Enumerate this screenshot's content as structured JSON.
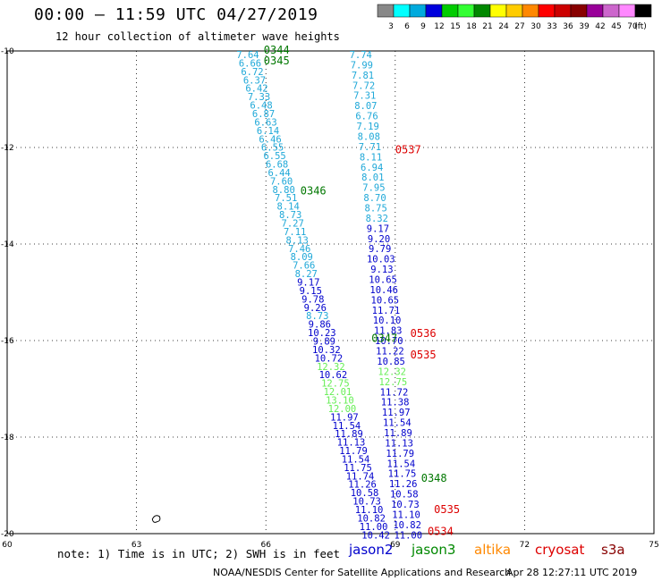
{
  "header": {
    "title": "00:00 – 11:59 UTC 04/27/2019",
    "subtitle": "12 hour collection of altimeter wave heights"
  },
  "legend": {
    "unit": "(ft)",
    "bins": [
      {
        "label": "3",
        "color": "#888888"
      },
      {
        "label": "6",
        "color": "#00ffff"
      },
      {
        "label": "9",
        "color": "#00aadd"
      },
      {
        "label": "12",
        "color": "#0000dd"
      },
      {
        "label": "15",
        "color": "#00cc00"
      },
      {
        "label": "18",
        "color": "#33ff33"
      },
      {
        "label": "21",
        "color": "#008800"
      },
      {
        "label": "24",
        "color": "#ffff00"
      },
      {
        "label": "27",
        "color": "#ffcc00"
      },
      {
        "label": "30",
        "color": "#ff8800"
      },
      {
        "label": "33",
        "color": "#ff0000"
      },
      {
        "label": "36",
        "color": "#cc0000"
      },
      {
        "label": "39",
        "color": "#880000"
      },
      {
        "label": "42",
        "color": "#990099"
      },
      {
        "label": "45",
        "color": "#cc66cc"
      },
      {
        "label": "70",
        "color": "#ff88ff"
      },
      {
        "label": "",
        "color": "#000000"
      }
    ]
  },
  "map": {
    "lon_range": [
      60,
      75
    ],
    "lat_range": [
      -20,
      -10
    ],
    "lon_ticks": [
      "60",
      "63",
      "66",
      "69",
      "72",
      "75"
    ],
    "lat_ticks": [
      {
        "lat": -10,
        "label": "-10"
      },
      {
        "lat": -12,
        "label": "-12"
      },
      {
        "lat": -14,
        "label": "-14"
      },
      {
        "lat": -16,
        "label": "-16"
      },
      {
        "lat": -18,
        "label": "-18"
      },
      {
        "lat": -20,
        "label": "-20"
      }
    ],
    "grid_lons": [
      63,
      66,
      69,
      72
    ],
    "grid_lats": [
      -12,
      -14,
      -16,
      -18
    ]
  },
  "tracks": [
    {
      "satellite": "jason3",
      "start": [
        65.58,
        -10.0
      ],
      "end": [
        68.55,
        -19.95
      ],
      "values": [
        "7.64",
        "6.66",
        "6.72",
        "6.37",
        "6.42",
        "7.33",
        "6.48",
        "6.87",
        "6.63",
        "6.14",
        "6.46",
        "6.55",
        "6.55",
        "6.68",
        "6.44",
        "7.60",
        "8.80",
        "7.51",
        "8.14",
        "8.73",
        "7.27",
        "7.11",
        "8.13",
        "7.46",
        "8.09",
        "7.66",
        "8.27",
        "9.17",
        "9.15",
        "9.78",
        "9.26",
        "8.73",
        "9.86",
        "10.23",
        "9.89",
        "10.32",
        "10.72",
        "12.32",
        "10.62",
        "12.75",
        "12.01",
        "13.10",
        "12.00",
        "11.97",
        "11.54",
        "11.89",
        "11.13",
        "11.79",
        "11.54",
        "11.75",
        "11.74",
        "11.26",
        "10.58",
        "10.73",
        "11.10",
        "10.82",
        "11.00",
        "10.42"
      ]
    },
    {
      "satellite": "jason3",
      "start": [
        68.2,
        -10.0
      ],
      "end": [
        69.3,
        -19.95
      ],
      "values": [
        "7.74",
        "7.99",
        "7.81",
        "7.72",
        "7.31",
        "8.07",
        "6.76",
        "7.19",
        "8.08",
        "7.71",
        "8.11",
        "6.94",
        "8.01",
        "7.95",
        "8.70",
        "8.75",
        "8.32",
        "9.17",
        "9.20",
        "9.79",
        "10.03",
        "9.13",
        "10.65",
        "10.46",
        "10.65",
        "11.71",
        "10.10",
        "11.83",
        "10.70",
        "11.22",
        "10.85",
        "12.32",
        "12.75",
        "11.72",
        "11.38",
        "11.97",
        "11.54",
        "11.89",
        "11.13",
        "11.79",
        "11.54",
        "11.75",
        "11.26",
        "10.58",
        "10.73",
        "11.10",
        "10.82",
        "11.00"
      ]
    }
  ],
  "pass_labels": [
    {
      "text": "0344",
      "lon": 65.95,
      "lat": -9.98,
      "color": "#007700"
    },
    {
      "text": "0345",
      "lon": 65.95,
      "lat": -10.2,
      "color": "#007700"
    },
    {
      "text": "0537",
      "lon": 69.0,
      "lat": -12.05,
      "color": "#dd0000"
    },
    {
      "text": "0346",
      "lon": 66.8,
      "lat": -12.9,
      "color": "#007700"
    },
    {
      "text": "0536",
      "lon": 69.35,
      "lat": -15.85,
      "color": "#dd0000"
    },
    {
      "text": "0347",
      "lon": 68.45,
      "lat": -15.95,
      "color": "#007700"
    },
    {
      "text": "0535",
      "lon": 69.35,
      "lat": -16.3,
      "color": "#dd0000"
    },
    {
      "text": "0348",
      "lon": 69.6,
      "lat": -18.85,
      "color": "#007700"
    },
    {
      "text": "0535",
      "lon": 69.9,
      "lat": -19.5,
      "color": "#dd0000"
    },
    {
      "text": "0534",
      "lon": 69.75,
      "lat": -19.95,
      "color": "#dd0000"
    }
  ],
  "islands": [
    {
      "name": "Rodrigues",
      "lon": 63.45,
      "lat": -19.7
    }
  ],
  "footer": {
    "note": "note: 1) Time is in UTC; 2) SWH is in feet",
    "satellites": [
      {
        "name": "jason2",
        "color": "#0000cc"
      },
      {
        "name": "jason3",
        "color": "#008800"
      },
      {
        "name": "altika",
        "color": "#ff8800"
      },
      {
        "name": "cryosat",
        "color": "#dd0000"
      },
      {
        "name": "s3a",
        "color": "#880000"
      }
    ],
    "credit": "NOAA/NESDIS Center for Satellite Applications and Research",
    "timestamp": "Apr 28 12:27:11 UTC 2019"
  }
}
